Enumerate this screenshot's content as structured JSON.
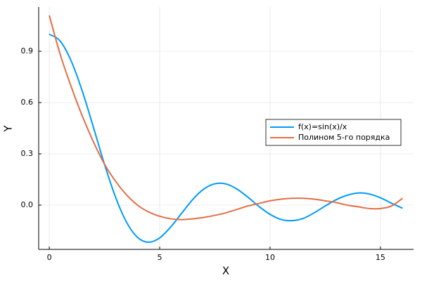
{
  "chart_data": {
    "type": "line",
    "x_label": "X",
    "y_label": "Y",
    "x": [
      0,
      0.5,
      1,
      1.5,
      2,
      2.5,
      3,
      3.5,
      4,
      4.5,
      5,
      5.5,
      6,
      6.5,
      7,
      7.5,
      8,
      8.5,
      9,
      9.5,
      10,
      10.5,
      11,
      11.5,
      12,
      12.5,
      13,
      13.5,
      14,
      14.5,
      15,
      15.5,
      16
    ],
    "series": [
      {
        "name": "f(x)=sin(x)/x",
        "color": "#009af9",
        "values": [
          1,
          0.959,
          0.841,
          0.665,
          0.455,
          0.239,
          0.047,
          -0.1,
          -0.189,
          -0.217,
          -0.192,
          -0.128,
          -0.047,
          0.033,
          0.094,
          0.125,
          0.124,
          0.094,
          0.046,
          -0.008,
          -0.054,
          -0.084,
          -0.091,
          -0.078,
          -0.045,
          -0.005,
          0.032,
          0.058,
          0.071,
          0.065,
          0.043,
          0.011,
          -0.018
        ]
      },
      {
        "name": "Полином 5-го порядка",
        "color": "#e26f46",
        "values": [
          1.11,
          0.88,
          0.69,
          0.52,
          0.37,
          0.24,
          0.14,
          0.06,
          0.0,
          -0.04,
          -0.065,
          -0.08,
          -0.085,
          -0.08,
          -0.072,
          -0.06,
          -0.045,
          -0.025,
          -0.005,
          0.01,
          0.025,
          0.035,
          0.04,
          0.04,
          0.035,
          0.025,
          0.015,
          0.0,
          -0.01,
          -0.02,
          -0.02,
          -0.005,
          0.04
        ]
      }
    ],
    "xlim": [
      -0.48,
      16.5
    ],
    "ylim": [
      -0.259,
      1.159
    ],
    "xticks": [
      0,
      5,
      10,
      15
    ],
    "yticks": [
      {
        "value": 0,
        "label": "0.0"
      },
      0.3,
      0.6,
      0.9
    ],
    "grid": true,
    "legend": "right"
  }
}
